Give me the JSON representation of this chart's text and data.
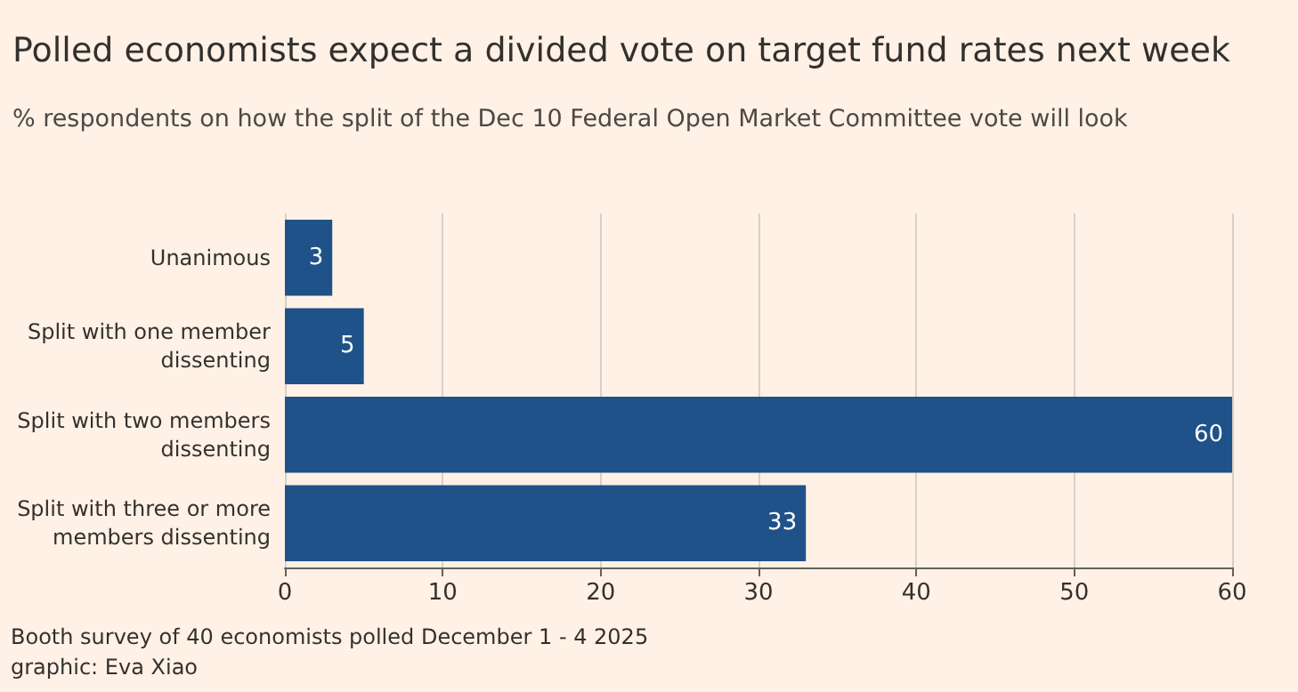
{
  "chart_data": {
    "type": "bar",
    "orientation": "horizontal",
    "title": "Polled economists expect a divided vote on target fund rates next week",
    "subtitle": "% respondents on how the split of the Dec 10 Federal Open Market Committee vote will look",
    "categories": [
      "Unanimous",
      "Split with one member\ndissenting",
      "Split with two members\ndissenting",
      "Split with three or more\nmembers dissenting"
    ],
    "values": [
      3,
      5,
      60,
      33
    ],
    "color": "#1f5289",
    "xlim": [
      0,
      60
    ],
    "xticks": [
      0,
      10,
      20,
      30,
      40,
      50,
      60
    ],
    "grid": "x",
    "data_labels": true,
    "annotations": [
      "Booth survey of 40 economists polled December 1 - 4 2025",
      "graphic: Eva Xiao"
    ]
  }
}
